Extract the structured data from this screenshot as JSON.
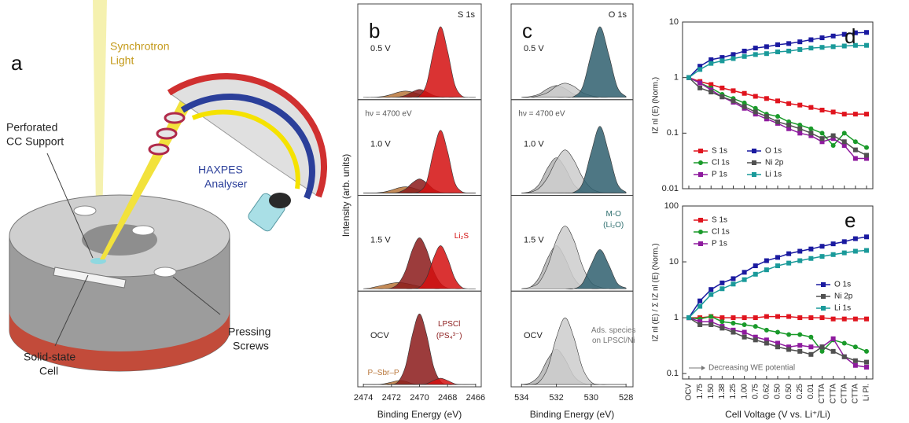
{
  "figure": {
    "panel_a": {
      "letter": "a",
      "synchrotron": [
        "Synchrotron",
        "Light"
      ],
      "support": [
        "Perforated",
        "CC Support"
      ],
      "analyser": [
        "HAXPES",
        "Analyser"
      ],
      "cell": [
        "Solid-state",
        "Cell"
      ],
      "screws": [
        "Pressing",
        "Screws"
      ]
    }
  },
  "chart_data": [
    {
      "type": "area",
      "panel_label": "b",
      "title": "S 1s",
      "x_label": "Binding Energy (eV)",
      "y_label": "Intensity (arb. units)",
      "x": [
        2474,
        2473.5,
        2473,
        2472.5,
        2472,
        2471.5,
        2471,
        2470.5,
        2470,
        2469.5,
        2469,
        2468.5,
        2468,
        2467.5,
        2467,
        2466.5,
        2466
      ],
      "xlim": [
        2474.4,
        2465.6
      ],
      "ylim": [
        0,
        100
      ],
      "xticks": [
        2474,
        2472,
        2470,
        2468,
        2466
      ],
      "panels": [
        {
          "label": "0.5 V",
          "annotations": [],
          "series": [
            {
              "color": "#b8763a",
              "values": [
                0,
                0,
                0.3,
                1.4,
                3.7,
                6.6,
                8,
                6.6,
                3.7,
                1.4,
                0.3,
                0,
                0,
                0,
                0,
                0,
                0
              ]
            },
            {
              "color": "#8b1a1a",
              "values": [
                0,
                0,
                0,
                0,
                0,
                0.4,
                2.5,
                7,
                10,
                7,
                2.5,
                0.4,
                0,
                0,
                0,
                0,
                0
              ]
            },
            {
              "color": "#d40f0f",
              "values": [
                0,
                0,
                0,
                0,
                0,
                0,
                0,
                0,
                2,
                17,
                59,
                90,
                59,
                17,
                2,
                0,
                0
              ]
            }
          ]
        },
        {
          "label": "1.0 V",
          "annotations": [
            {
              "text": "hν = 4700 eV",
              "color": "#555555"
            }
          ],
          "series": [
            {
              "color": "#b8763a",
              "values": [
                0,
                0,
                0.3,
                1.4,
                3.7,
                6.6,
                8,
                6.6,
                3.7,
                1.4,
                0.3,
                0,
                0,
                0,
                0,
                0,
                0
              ]
            },
            {
              "color": "#8b1a1a",
              "values": [
                0,
                0,
                0,
                0,
                0,
                1,
                5,
                13,
                18,
                13,
                5,
                1,
                0,
                0,
                0,
                0,
                0
              ]
            },
            {
              "color": "#d40f0f",
              "values": [
                0,
                0,
                0,
                0,
                0,
                0,
                0,
                0,
                2,
                14,
                53,
                80,
                53,
                14,
                2,
                0,
                0
              ]
            }
          ]
        },
        {
          "label": "1.5 V",
          "annotations": [
            {
              "text": "Li₂S",
              "color": "#d40f0f"
            }
          ],
          "series": [
            {
              "color": "#b8763a",
              "values": [
                0,
                1,
                3,
                5,
                7,
                8,
                7,
                5,
                3,
                1,
                0,
                0,
                0,
                0,
                0,
                0,
                0
              ]
            },
            {
              "color": "#8b1a1a",
              "values": [
                0,
                0,
                0,
                0,
                1,
                7,
                23,
                50,
                65,
                50,
                23,
                7,
                1,
                0,
                0,
                0,
                0
              ]
            },
            {
              "color": "#d40f0f",
              "values": [
                0,
                0,
                0,
                0,
                0,
                0,
                0,
                0,
                2,
                14,
                39,
                55,
                39,
                14,
                2,
                0,
                0
              ]
            }
          ]
        },
        {
          "label": "OCV",
          "annotations": [
            {
              "text": "LPSCl",
              "color": "#8b1a1a"
            },
            {
              "text": "(PS₄³⁻)",
              "color": "#8b1a1a"
            },
            {
              "text": "P–Sbr–P",
              "color": "#b8763a"
            }
          ],
          "series": [
            {
              "color": "#b8763a",
              "values": [
                0,
                0,
                0,
                1,
                3,
                5,
                4,
                1,
                0,
                0,
                0,
                0,
                0,
                0,
                0,
                0,
                0
              ]
            },
            {
              "color": "#8b1a1a",
              "values": [
                0,
                0,
                0,
                0,
                0,
                4,
                23,
                64,
                90,
                64,
                23,
                4,
                0,
                0,
                0,
                0,
                0
              ]
            },
            {
              "color": "#d40f0f",
              "values": [
                0,
                0,
                0,
                0,
                0,
                0,
                0,
                0,
                0,
                1,
                5,
                8,
                5,
                1,
                0,
                0,
                0
              ]
            }
          ]
        }
      ]
    },
    {
      "type": "area",
      "panel_label": "c",
      "title": "O 1s",
      "x_label": "Binding Energy (eV)",
      "x": [
        534,
        533.5,
        533,
        532.5,
        532,
        531.5,
        531,
        530.5,
        530,
        529.5,
        529,
        528.5,
        528
      ],
      "xlim": [
        534.6,
        527.6
      ],
      "ylim": [
        0,
        100
      ],
      "xticks": [
        534,
        532,
        530,
        528
      ],
      "panels": [
        {
          "label": "0.5 V",
          "annotations": [],
          "series": [
            {
              "color": "#b4b4b4",
              "values": [
                0,
                1,
                4,
                11,
                15,
                11,
                4,
                1,
                0,
                0,
                0,
                0,
                0
              ]
            },
            {
              "color": "#cdcdcd",
              "values": [
                0,
                0,
                2,
                6,
                14,
                18,
                14,
                6,
                2,
                0,
                0,
                0,
                0
              ]
            },
            {
              "color": "#2f5f6f",
              "values": [
                0,
                0,
                0,
                0,
                0,
                0,
                1,
                13,
                55,
                90,
                55,
                13,
                1
              ]
            }
          ]
        },
        {
          "label": "1.0 V",
          "annotations": [
            {
              "text": "hν = 4700 eV",
              "color": "#555555"
            }
          ],
          "series": [
            {
              "color": "#b4b4b4",
              "values": [
                0,
                2,
                11,
                32,
                45,
                32,
                11,
                2,
                0,
                0,
                0,
                0,
                0
              ]
            },
            {
              "color": "#cdcdcd",
              "values": [
                0,
                1,
                6,
                20,
                42,
                55,
                42,
                20,
                6,
                1,
                0,
                0,
                0
              ]
            },
            {
              "color": "#2f5f6f",
              "values": [
                0,
                0,
                0,
                0,
                0,
                0,
                1,
                12,
                52,
                85,
                52,
                12,
                1
              ]
            }
          ]
        },
        {
          "label": "1.5 V",
          "annotations": [
            {
              "text": "M-O",
              "color": "#2f6f6f"
            },
            {
              "text": "(Li₂O)",
              "color": "#2f6f6f"
            }
          ],
          "series": [
            {
              "color": "#b4b4b4",
              "values": [
                0,
                2,
                14,
                39,
                55,
                39,
                14,
                2,
                0,
                0,
                0,
                0,
                0
              ]
            },
            {
              "color": "#cdcdcd",
              "values": [
                0,
                2,
                8,
                29,
                62,
                80,
                62,
                29,
                8,
                2,
                0,
                0,
                0
              ]
            },
            {
              "color": "#2f5f6f",
              "values": [
                0,
                0,
                0,
                0,
                0,
                0,
                0,
                7,
                31,
                50,
                31,
                7,
                1
              ]
            }
          ]
        },
        {
          "label": "OCV",
          "annotations": [
            {
              "text": "Ads. species",
              "color": "#777777"
            },
            {
              "text": "on LPSCl/Ni",
              "color": "#777777"
            }
          ],
          "series": [
            {
              "color": "#b4b4b4",
              "values": [
                0,
                2,
                11,
                32,
                45,
                32,
                11,
                2,
                0,
                0,
                0,
                0,
                0
              ]
            },
            {
              "color": "#cdcdcd",
              "values": [
                0,
                0,
                3,
                21,
                60,
                85,
                60,
                21,
                3,
                0,
                0,
                0,
                0
              ]
            }
          ]
        }
      ]
    },
    {
      "type": "line",
      "panel_label": "d",
      "y_label": "IZ nl (E)  (Norm.)",
      "yscale": "log",
      "ylim": [
        0.01,
        10
      ],
      "yticks": [
        0.01,
        0.1,
        1,
        10
      ],
      "legend": "lower left",
      "categories": [
        null,
        null,
        null,
        null,
        null,
        null,
        null,
        null,
        null,
        null,
        null,
        null,
        null,
        null,
        null,
        null,
        null
      ],
      "series": [
        {
          "name": "S 1s",
          "color": "#e0141e",
          "marker": "square",
          "values": [
            1,
            0.85,
            0.75,
            0.65,
            0.58,
            0.52,
            0.46,
            0.42,
            0.38,
            0.34,
            0.32,
            0.29,
            0.26,
            0.24,
            0.22,
            0.22,
            0.22
          ]
        },
        {
          "name": "Cl 1s",
          "color": "#1a9a2a",
          "marker": "circle",
          "values": [
            1,
            0.8,
            0.65,
            0.5,
            0.42,
            0.35,
            0.28,
            0.22,
            0.2,
            0.16,
            0.14,
            0.12,
            0.1,
            0.06,
            0.1,
            0.07,
            0.055
          ]
        },
        {
          "name": "P 1s",
          "color": "#8e1a9e",
          "marker": "square",
          "values": [
            1,
            0.8,
            0.6,
            0.45,
            0.36,
            0.28,
            0.22,
            0.18,
            0.15,
            0.12,
            0.1,
            0.09,
            0.07,
            0.08,
            0.06,
            0.035,
            0.035
          ]
        },
        {
          "name": "O 1s",
          "color": "#1a1aa0",
          "marker": "square",
          "values": [
            1,
            1.6,
            2.1,
            2.3,
            2.6,
            3.0,
            3.4,
            3.6,
            3.9,
            4.1,
            4.4,
            4.8,
            5.2,
            5.6,
            6.0,
            6.4,
            6.5
          ]
        },
        {
          "name": "Ni 2p",
          "color": "#505050",
          "marker": "square",
          "values": [
            1,
            0.65,
            0.55,
            0.45,
            0.38,
            0.3,
            0.24,
            0.2,
            0.16,
            0.14,
            0.12,
            0.1,
            0.08,
            0.09,
            0.07,
            0.05,
            0.04
          ]
        },
        {
          "name": "Li 1s",
          "color": "#1a9a9a",
          "marker": "square",
          "values": [
            1,
            1.4,
            1.8,
            2.0,
            2.2,
            2.4,
            2.6,
            2.7,
            2.9,
            3.0,
            3.2,
            3.4,
            3.5,
            3.6,
            3.7,
            3.8,
            3.8
          ]
        }
      ]
    },
    {
      "type": "line",
      "panel_label": "e",
      "y_label": "IZ nl (E) / Σ IZ nl (E)  (Norm.)",
      "x_label": "Cell Voltage (V vs. Li⁺/Li)",
      "annotation": "Decreasing WE potential",
      "yscale": "log",
      "ylim": [
        0.08,
        100
      ],
      "yticks": [
        0.1,
        1,
        10,
        100
      ],
      "legend": "upper left",
      "categories": [
        "OCV",
        "1.75",
        "1.50",
        "1.38",
        "1.25",
        "1.00",
        "0.75",
        "0.62",
        "0.50",
        "0.50",
        "0.25",
        "0.01",
        "CTTA",
        "CTTA",
        "CTTA",
        "CTTA",
        "Li Pl."
      ],
      "series": [
        {
          "name": "S 1s",
          "color": "#e0141e",
          "marker": "square",
          "values": [
            1,
            1.0,
            1.05,
            1.0,
            1.0,
            1.0,
            1.0,
            1.05,
            1.05,
            1.05,
            1.0,
            1.0,
            1.0,
            0.95,
            0.95,
            0.95,
            0.95
          ]
        },
        {
          "name": "Cl 1s",
          "color": "#1a9a2a",
          "marker": "circle",
          "values": [
            1,
            0.95,
            1.05,
            0.85,
            0.8,
            0.75,
            0.7,
            0.6,
            0.55,
            0.5,
            0.5,
            0.45,
            0.25,
            0.4,
            0.35,
            0.3,
            0.25
          ]
        },
        {
          "name": "P 1s",
          "color": "#8e1a9e",
          "marker": "square",
          "values": [
            1,
            0.85,
            0.85,
            0.7,
            0.6,
            0.55,
            0.45,
            0.4,
            0.35,
            0.3,
            0.32,
            0.3,
            0.3,
            0.42,
            0.2,
            0.14,
            0.13
          ]
        },
        {
          "name": "O 1s",
          "color": "#1a1aa0",
          "marker": "square",
          "values": [
            1,
            2.0,
            3.2,
            4.2,
            5.0,
            6.5,
            8.5,
            10.5,
            12,
            14,
            15.5,
            17,
            19,
            21,
            23,
            26,
            28
          ]
        },
        {
          "name": "Ni 2p",
          "color": "#505050",
          "marker": "square",
          "values": [
            1,
            0.75,
            0.75,
            0.65,
            0.55,
            0.45,
            0.4,
            0.35,
            0.3,
            0.27,
            0.25,
            0.22,
            0.3,
            0.25,
            0.2,
            0.17,
            0.16
          ]
        },
        {
          "name": "Li 1s",
          "color": "#1a9a9a",
          "marker": "square",
          "values": [
            1,
            1.6,
            2.6,
            3.3,
            4.0,
            4.8,
            6.0,
            7.2,
            8.5,
            9.5,
            10.5,
            11.5,
            12.5,
            13.5,
            14.5,
            15.5,
            16
          ]
        }
      ]
    }
  ]
}
